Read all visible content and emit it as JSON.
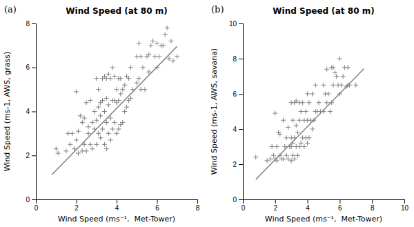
{
  "chart_data": [
    {
      "type": "scatter",
      "title": "Wind Speed (at 80 m)",
      "x_label": "Wind Speed (ms⁻¹,  Met-Tower)",
      "y_label": "Wind Speed (ms-1, AWS, grass)",
      "annotations": [
        "(a)"
      ],
      "xlim": [
        0,
        8
      ],
      "ylim": [
        0,
        8
      ],
      "xticks": [
        0,
        2,
        4,
        6,
        8
      ],
      "yticks": [
        0,
        2,
        4,
        6,
        8
      ],
      "grid": false,
      "series": [
        {
          "type": "scatter",
          "marker": "plus",
          "color": "#808080",
          "x": [
            1.0,
            1.1,
            1.5,
            1.6,
            1.7,
            1.8,
            1.9,
            2.0,
            2.0,
            2.1,
            2.1,
            2.2,
            2.3,
            2.3,
            2.4,
            2.4,
            2.5,
            2.5,
            2.6,
            2.6,
            2.7,
            2.7,
            2.8,
            2.8,
            2.9,
            2.9,
            3.0,
            3.0,
            3.0,
            3.1,
            3.1,
            3.1,
            3.2,
            3.2,
            3.2,
            3.3,
            3.3,
            3.3,
            3.4,
            3.4,
            3.4,
            3.5,
            3.5,
            3.5,
            3.5,
            3.6,
            3.6,
            3.6,
            3.7,
            3.7,
            3.7,
            3.8,
            3.8,
            3.8,
            3.9,
            3.9,
            3.9,
            4.0,
            4.0,
            4.0,
            4.1,
            4.1,
            4.1,
            4.2,
            4.2,
            4.2,
            4.3,
            4.3,
            4.4,
            4.4,
            4.5,
            4.5,
            4.6,
            4.6,
            4.7,
            4.7,
            4.8,
            5.0,
            5.0,
            5.1,
            5.1,
            5.2,
            5.2,
            5.3,
            5.4,
            5.5,
            5.6,
            5.6,
            5.7,
            5.8,
            5.9,
            6.0,
            6.0,
            6.1,
            6.2,
            6.3,
            6.4,
            6.5,
            6.6,
            6.7,
            6.8,
            7.0
          ],
          "values": [
            2.3,
            2.1,
            2.2,
            3.0,
            2.5,
            3.0,
            2.3,
            2.7,
            4.9,
            2.1,
            3.1,
            3.8,
            2.2,
            3.5,
            2.5,
            3.7,
            2.2,
            4.4,
            3.0,
            3.3,
            2.5,
            4.5,
            2.3,
            3.5,
            3.2,
            4.0,
            2.5,
            3.6,
            5.5,
            3.0,
            4.2,
            5.0,
            2.8,
            3.8,
            4.4,
            3.2,
            4.5,
            5.5,
            2.5,
            4.0,
            5.6,
            2.3,
            3.5,
            4.6,
            5.5,
            3.0,
            4.3,
            5.7,
            2.7,
            3.7,
            5.5,
            3.2,
            4.5,
            6.0,
            3.5,
            4.5,
            5.6,
            3.0,
            4.4,
            5.0,
            3.2,
            4.5,
            5.5,
            3.4,
            4.8,
            5.5,
            3.5,
            5.0,
            4.0,
            5.2,
            4.2,
            5.6,
            4.5,
            5.5,
            4.6,
            6.0,
            5.0,
            5.3,
            6.5,
            5.5,
            7.1,
            5.0,
            6.5,
            6.0,
            5.0,
            6.5,
            5.8,
            6.6,
            7.0,
            7.2,
            6.5,
            6.0,
            7.1,
            6.5,
            7.0,
            7.0,
            7.5,
            7.8,
            6.4,
            7.2,
            6.3,
            6.5
          ]
        },
        {
          "type": "line",
          "line_style": "solid",
          "color": "#808080",
          "x": [
            0.8,
            7.0
          ],
          "values": [
            1.132,
            6.96
          ]
        }
      ]
    },
    {
      "type": "scatter",
      "title": "Wind Speed (at 80 m)",
      "x_label": "Wind Speed (ms⁻¹,  Met-Tower)",
      "y_label": "Wind Speed (ms-1, AWS, savana)",
      "annotations": [
        "(b)"
      ],
      "xlim": [
        0,
        10
      ],
      "ylim": [
        0,
        10
      ],
      "xticks": [
        0,
        2,
        4,
        6,
        8,
        10
      ],
      "yticks": [
        0,
        2,
        4,
        6,
        8,
        10
      ],
      "grid": false,
      "series": [
        {
          "type": "scatter",
          "marker": "plus",
          "color": "#808080",
          "x": [
            0.8,
            1.5,
            1.7,
            1.8,
            1.9,
            2.0,
            2.0,
            2.1,
            2.1,
            2.2,
            2.3,
            2.3,
            2.4,
            2.5,
            2.5,
            2.6,
            2.7,
            2.7,
            2.8,
            2.8,
            2.9,
            3.0,
            3.0,
            3.0,
            3.0,
            3.1,
            3.1,
            3.1,
            3.2,
            3.2,
            3.2,
            3.3,
            3.3,
            3.3,
            3.4,
            3.4,
            3.5,
            3.5,
            3.5,
            3.6,
            3.6,
            3.7,
            3.7,
            3.8,
            3.8,
            3.9,
            3.9,
            4.0,
            4.0,
            4.0,
            4.1,
            4.1,
            4.2,
            4.3,
            4.3,
            4.4,
            4.5,
            4.5,
            4.6,
            4.7,
            4.8,
            5.0,
            5.0,
            5.1,
            5.2,
            5.2,
            5.3,
            5.4,
            5.5,
            5.5,
            5.6,
            5.6,
            5.7,
            5.8,
            5.9,
            6.0,
            6.0,
            6.1,
            6.2,
            6.3,
            6.4,
            6.5,
            6.5,
            6.6,
            7.0
          ],
          "values": [
            2.4,
            2.2,
            2.3,
            3.0,
            2.5,
            2.3,
            4.9,
            2.2,
            3.0,
            3.8,
            2.5,
            3.7,
            2.3,
            2.3,
            4.5,
            3.0,
            2.5,
            3.5,
            2.3,
            4.1,
            3.0,
            2.2,
            3.0,
            3.5,
            5.5,
            2.5,
            3.2,
            4.5,
            2.3,
            3.5,
            5.5,
            3.0,
            4.2,
            5.6,
            2.5,
            3.8,
            3.0,
            4.5,
            5.5,
            3.2,
            5.0,
            3.5,
            5.5,
            3.0,
            4.5,
            3.5,
            5.0,
            3.2,
            4.5,
            6.0,
            3.5,
            5.5,
            4.5,
            4.0,
            6.0,
            4.5,
            5.0,
            6.5,
            5.0,
            5.5,
            5.0,
            5.0,
            6.5,
            6.0,
            5.5,
            7.4,
            6.0,
            5.0,
            5.5,
            7.5,
            6.5,
            7.5,
            7.2,
            7.0,
            6.5,
            6.0,
            8.0,
            6.5,
            7.0,
            7.5,
            6.4,
            7.5,
            6.5,
            6.5,
            6.5
          ]
        },
        {
          "type": "line",
          "line_style": "solid",
          "color": "#808080",
          "x": [
            0.8,
            7.5
          ],
          "values": [
            1.132,
            7.43
          ]
        }
      ]
    }
  ]
}
